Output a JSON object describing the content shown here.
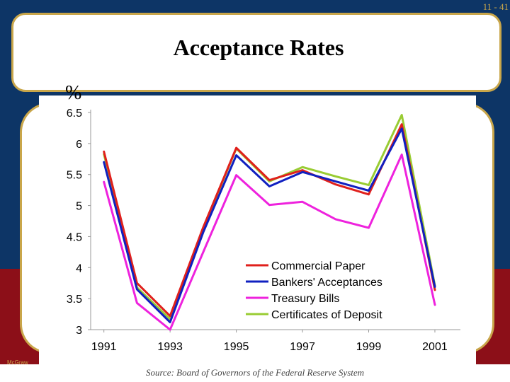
{
  "slide": {
    "number": "11 - 41",
    "title": "Acceptance Rates",
    "unit": "%",
    "source": "Source: Board of Governors of the Federal Reserve System",
    "publisher_fragment": "McGraw"
  },
  "chart_data": {
    "type": "line",
    "title": "Acceptance Rates",
    "xlabel": "",
    "ylabel": "%",
    "xlim": [
      1990.6,
      2001.6
    ],
    "ylim": [
      3,
      6.5
    ],
    "yticks": [
      "6.5",
      "6",
      "5.5",
      "5",
      "4.5",
      "4",
      "3.5",
      "3"
    ],
    "ytick_values": [
      6.5,
      6,
      5.5,
      5,
      4.5,
      4,
      3.5,
      3
    ],
    "xticks": [
      "1991",
      "1993",
      "1995",
      "1997",
      "1999",
      "2001"
    ],
    "xtick_values": [
      1991,
      1993,
      1995,
      1997,
      1999,
      2001
    ],
    "grid": false,
    "legend_position": "lower-right",
    "x": [
      1991,
      1992,
      1993,
      1994,
      1995,
      1996,
      1997,
      1998,
      1999,
      2000,
      2001
    ],
    "series": [
      {
        "name": "Commercial Paper",
        "color": "#e0201c",
        "values": [
          5.87,
          3.75,
          3.22,
          4.65,
          5.93,
          5.41,
          5.57,
          5.34,
          5.18,
          6.31,
          3.64
        ]
      },
      {
        "name": "Bankers' Acceptances",
        "color": "#1020c0",
        "values": [
          5.7,
          3.65,
          3.12,
          4.57,
          5.81,
          5.31,
          5.54,
          5.39,
          5.24,
          6.24,
          3.69
        ]
      },
      {
        "name": "Treasury Bills",
        "color": "#ee22dd",
        "values": [
          5.38,
          3.43,
          3.0,
          4.25,
          5.49,
          5.01,
          5.06,
          4.78,
          4.64,
          5.82,
          3.4
        ]
      },
      {
        "name": "Certificates of Deposit",
        "color": "#99cc33",
        "values": [
          5.83,
          3.68,
          3.17,
          4.63,
          5.92,
          5.39,
          5.62,
          5.47,
          5.33,
          6.46,
          3.71
        ]
      }
    ]
  }
}
